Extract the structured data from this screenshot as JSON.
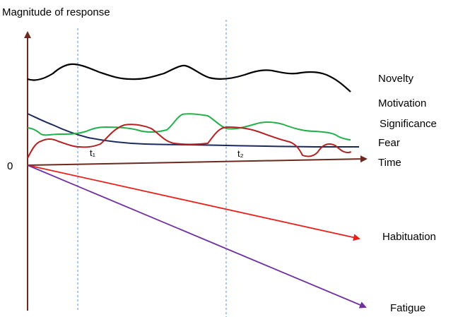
{
  "labels": {
    "y_axis": "Magnitude of response",
    "origin": "0",
    "time": "Time",
    "t1": "t₁",
    "t2": "t₂"
  },
  "series": [
    {
      "name": "Novelty",
      "color": "#000000"
    },
    {
      "name": "Motivation",
      "color": "#1a2a5e"
    },
    {
      "name": "Significance",
      "color": "#22b04a"
    },
    {
      "name": "Fear",
      "color": "#b22222"
    }
  ],
  "trends": [
    {
      "name": "Habituation",
      "color": "#e8201c"
    },
    {
      "name": "Fatigue",
      "color": "#7030a0"
    }
  ],
  "colors": {
    "axis": "#6b2a20",
    "guide": "#5b8fd0"
  }
}
